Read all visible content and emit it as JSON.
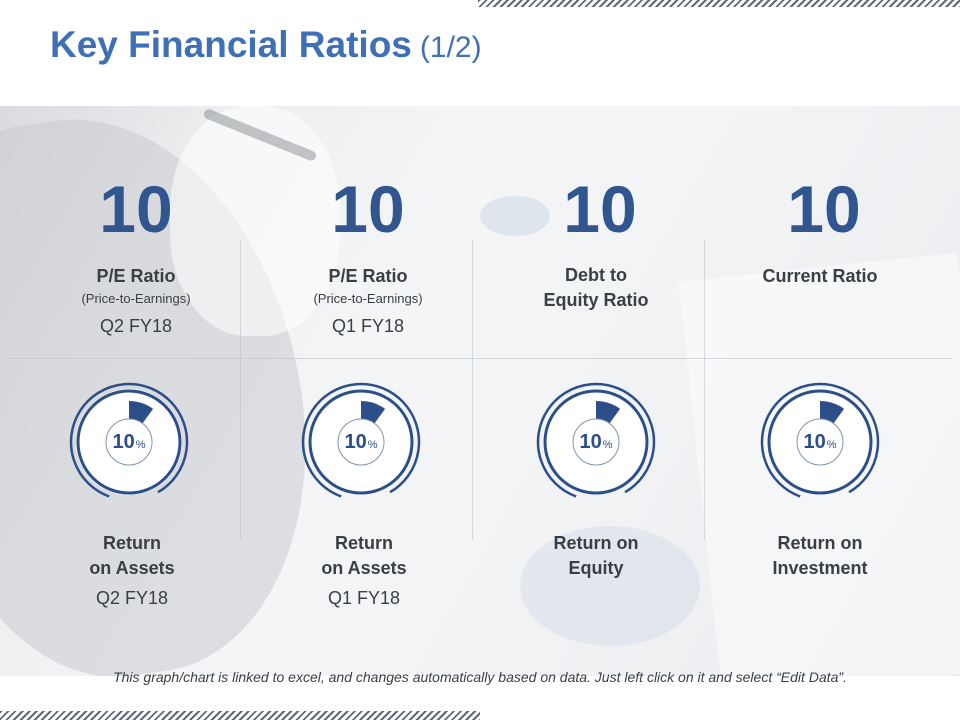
{
  "header": {
    "title": "Key Financial Ratios",
    "title_suffix": "(1/2)"
  },
  "top_metrics": [
    {
      "value": "10",
      "title": "P/E Ratio",
      "subtitle": "(Price-to-Earnings)",
      "period": "Q2 FY18"
    },
    {
      "value": "10",
      "title": "P/E Ratio",
      "subtitle": "(Price-to-Earnings)",
      "period": "Q1 FY18"
    },
    {
      "value": "10",
      "title_line1": "Debt to",
      "title_line2": "Equity Ratio"
    },
    {
      "value": "10",
      "title": "Current Ratio"
    }
  ],
  "gauges": [
    {
      "value_pct": 10,
      "value_text": "10",
      "unit": "%",
      "label_line1": "Return",
      "label_line2": "on Assets",
      "period": "Q2 FY18"
    },
    {
      "value_pct": 10,
      "value_text": "10",
      "unit": "%",
      "label_line1": "Return",
      "label_line2": "on Assets",
      "period": "Q1 FY18"
    },
    {
      "value_pct": 10,
      "value_text": "10",
      "unit": "%",
      "label_line1": "Return on",
      "label_line2": "Equity"
    },
    {
      "value_pct": 10,
      "value_text": "10",
      "unit": "%",
      "label_line1": "Return on",
      "label_line2": "Investment"
    }
  ],
  "footer_note": "This graph/chart is linked to excel, and changes automatically based on data.  Just left click on it and select “Edit Data”.",
  "colors": {
    "title": "#3f6fb5",
    "accent": "#30558f",
    "gauge_fill": "#2c4f8a",
    "text": "#3a3f45"
  }
}
